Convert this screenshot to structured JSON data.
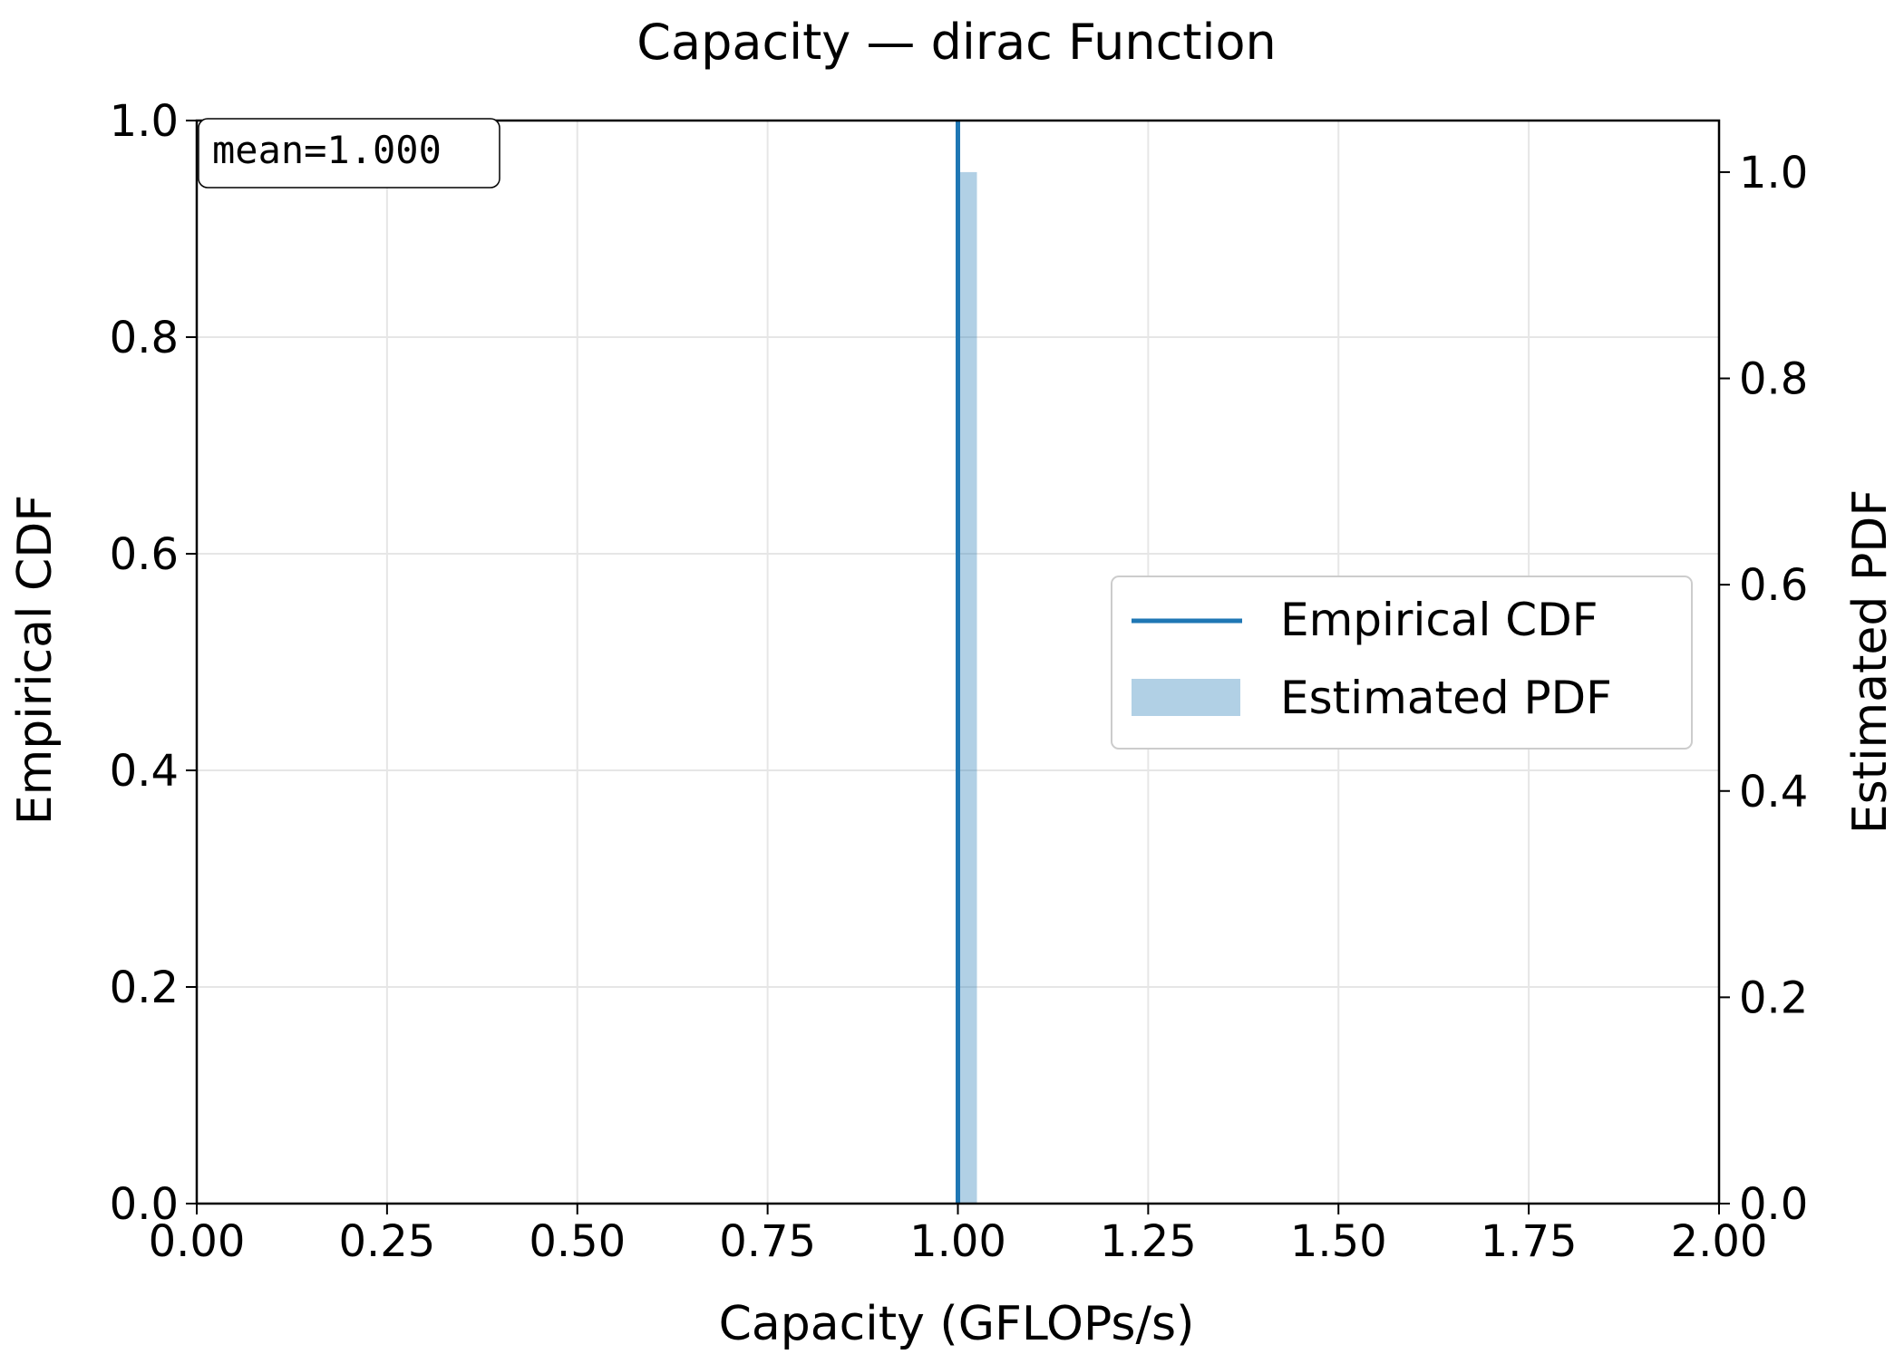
{
  "chart_data": {
    "type": "line",
    "title": "Capacity — dirac Function",
    "xlabel": "Capacity (GFLOPs/s)",
    "ylabel": "Empirical CDF",
    "y2label": "Estimated PDF",
    "xlim": [
      0.0,
      2.0
    ],
    "ylim": [
      0.0,
      1.0
    ],
    "y2lim": [
      0.0,
      1.05
    ],
    "xticks": [
      "0.00",
      "0.25",
      "0.50",
      "0.75",
      "1.00",
      "1.25",
      "1.50",
      "1.75",
      "2.00"
    ],
    "xtick_values": [
      0.0,
      0.25,
      0.5,
      0.75,
      1.0,
      1.25,
      1.5,
      1.75,
      2.0
    ],
    "yticks": [
      "0.0",
      "0.2",
      "0.4",
      "0.6",
      "0.8",
      "1.0"
    ],
    "ytick_values": [
      0.0,
      0.2,
      0.4,
      0.6,
      0.8,
      1.0
    ],
    "y2ticks": [
      "0.0",
      "0.2",
      "0.4",
      "0.6",
      "0.8",
      "1.0"
    ],
    "y2tick_values": [
      0.0,
      0.2,
      0.4,
      0.6,
      0.8,
      1.0
    ],
    "grid": true,
    "legend_position": "center-right",
    "annotation": "mean=1.000",
    "series": [
      {
        "name": "Empirical CDF",
        "kind": "step",
        "axis": "left",
        "color": "#1f77b4",
        "x": [
          1.0,
          1.0
        ],
        "y": [
          0.0,
          1.0
        ]
      },
      {
        "name": "Estimated PDF",
        "kind": "bar",
        "axis": "right",
        "color": "#1f77b4",
        "alpha": 0.35,
        "x_start": 1.0,
        "x_end": 1.025,
        "value": 1.0
      }
    ]
  }
}
